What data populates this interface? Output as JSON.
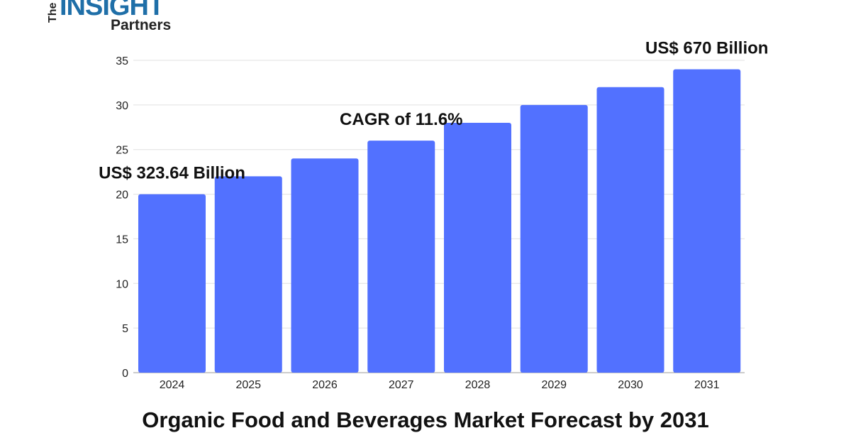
{
  "logo": {
    "text_the": "The",
    "text_insight": "INSIGHT",
    "text_partners": "Partners"
  },
  "chart_data": {
    "type": "bar",
    "title": "Organic Food and Beverages Market Forecast by 2031",
    "categories": [
      "2024",
      "2025",
      "2026",
      "2027",
      "2028",
      "2029",
      "2030",
      "2031"
    ],
    "values": [
      20,
      22,
      24,
      26,
      28,
      30,
      32,
      34
    ],
    "ylim": [
      0,
      35
    ],
    "yticks": [
      0,
      5,
      10,
      15,
      20,
      25,
      30,
      35
    ],
    "grid": true,
    "bar_color": "#5271ff",
    "annotations": [
      {
        "text": "US$ 323.64 Billion",
        "category": "2024"
      },
      {
        "text": "CAGR of 11.6%",
        "category": "2027"
      },
      {
        "text": "US$ 670 Billion",
        "category": "2031"
      }
    ]
  }
}
